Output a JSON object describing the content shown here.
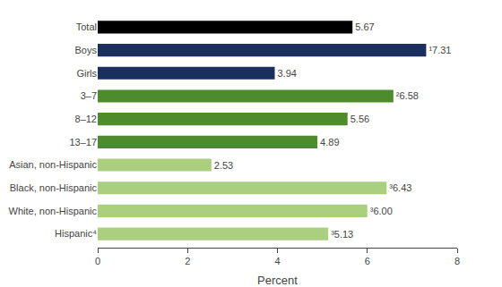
{
  "chart_data": {
    "type": "bar",
    "orientation": "horizontal",
    "categories": [
      "Hispanic⁴",
      "White, non-Hispanic",
      "Black, non-Hispanic",
      "Asian, non-Hispanic",
      "13–17",
      "8–12",
      "3–7",
      "Girls",
      "Boys",
      "Total"
    ],
    "values": [
      5.13,
      6.0,
      6.43,
      2.53,
      4.89,
      5.56,
      6.58,
      3.94,
      7.31,
      5.67
    ],
    "value_labels": [
      "5.13",
      "6.00",
      "6.43",
      "2.53",
      "4.89",
      "5.56",
      "6.58",
      "3.94",
      "7.31",
      "5.67"
    ],
    "superscripts": [
      "³",
      "³",
      "³",
      null,
      null,
      null,
      "²",
      null,
      "¹",
      null
    ],
    "colors": [
      "#aacf7e",
      "#aacf7e",
      "#aacf7e",
      "#aacf7e",
      "#4d8b2d",
      "#4d8b2d",
      "#4d8b2d",
      "#1b2f5e",
      "#1b2f5e",
      "#000000"
    ],
    "data_labels": true,
    "xlim": [
      0,
      8
    ],
    "xticks": [
      0,
      2,
      4,
      6,
      8
    ],
    "xlabel": "Percent",
    "grid": false
  }
}
